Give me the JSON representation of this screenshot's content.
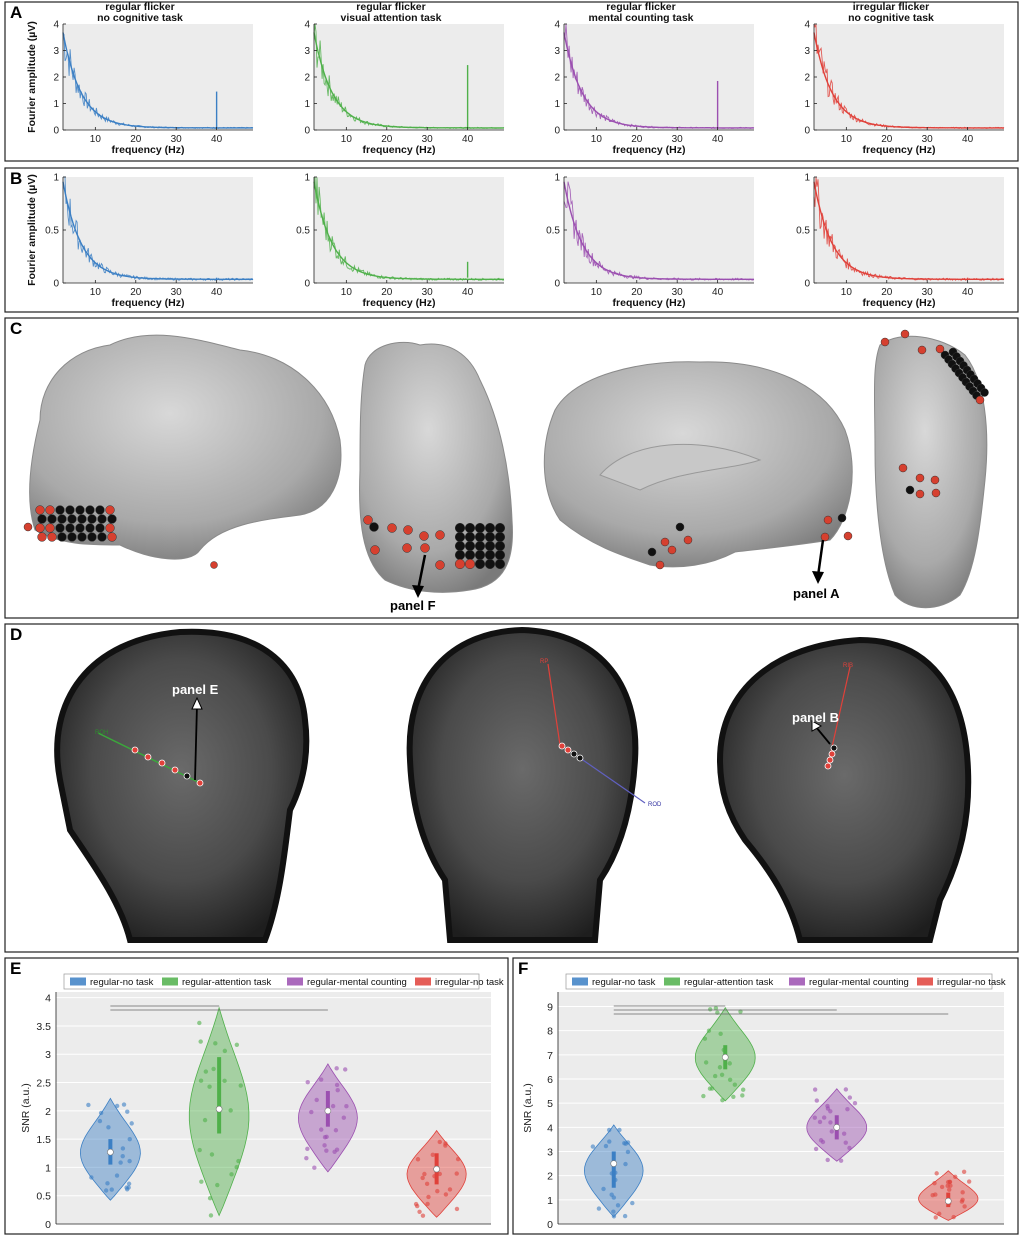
{
  "panel_letters": {
    "A": "A",
    "B": "B",
    "C": "C",
    "D": "D",
    "E": "E",
    "F": "F"
  },
  "conditions": [
    {
      "line1": "regular flicker",
      "line2": "no cognitive task",
      "color": "#3b7fc4"
    },
    {
      "line1": "regular flicker",
      "line2": "visual attention task",
      "color": "#4fb04a"
    },
    {
      "line1": "regular flicker",
      "line2": "mental counting task",
      "color": "#9b4fb0"
    },
    {
      "line1": "irregular flicker",
      "line2": "no cognitive task",
      "color": "#e0413a"
    }
  ],
  "spectra_axes": {
    "xlabel": "frequency (Hz)",
    "ylabel": "Fourier amplitude (µV)",
    "xticks": [
      "10",
      "20",
      "30",
      "40"
    ],
    "A_yticks": [
      "0",
      "1",
      "2",
      "3",
      "4"
    ],
    "B_yticks": [
      "0",
      "0.5",
      "1"
    ]
  },
  "C_annotations": {
    "panel_f": "panel F",
    "panel_a": "panel A"
  },
  "D_annotations": {
    "panel_e": "panel E",
    "panel_b": "panel B",
    "tag_roh": "ROH",
    "tag_rod": "ROD",
    "tag_rib": "RIB",
    "tag_rp": "RP"
  },
  "chart_data": [
    {
      "type": "line",
      "panel": "A",
      "title": "regular flicker / no cognitive task · visual attention task · mental counting task · irregular flicker / no cognitive task",
      "xlabel": "frequency (Hz)",
      "ylabel": "Fourier amplitude (µV)",
      "xlim": [
        2,
        49
      ],
      "ylim": [
        0,
        4
      ],
      "series": [
        {
          "name": "regular flicker no cognitive task",
          "peak_40Hz": 1.45
        },
        {
          "name": "regular flicker visual attention task",
          "peak_40Hz": 2.45
        },
        {
          "name": "regular flicker mental counting task",
          "peak_40Hz": 1.85
        },
        {
          "name": "irregular flicker no cognitive task",
          "peak_40Hz": 0.1
        }
      ]
    },
    {
      "type": "line",
      "panel": "B",
      "xlabel": "frequency (Hz)",
      "ylabel": "Fourier amplitude (µV)",
      "xlim": [
        2,
        49
      ],
      "ylim": [
        0,
        1
      ],
      "series": [
        {
          "name": "regular flicker no cognitive task",
          "peak_40Hz": 0.04
        },
        {
          "name": "regular flicker visual attention task",
          "peak_40Hz": 0.2
        },
        {
          "name": "regular flicker mental counting task",
          "peak_40Hz": 0.05
        },
        {
          "name": "irregular flicker no cognitive task",
          "peak_40Hz": 0.04
        }
      ]
    },
    {
      "type": "violin",
      "panel": "E",
      "ylabel": "SNR (a.u.)",
      "ylim": [
        0,
        4.1
      ],
      "yticks": [
        "0",
        "0.5",
        "1",
        "1.5",
        "2",
        "2.5",
        "3",
        "3.5",
        "4"
      ],
      "legend": [
        "regular-no task",
        "regular-attention task",
        "regular-mental counting",
        "irregular-no task"
      ],
      "series": [
        {
          "name": "regular-no task",
          "min": 0.42,
          "max": 2.22,
          "median": 1.27,
          "q1": 1.05,
          "q3": 1.5
        },
        {
          "name": "regular-attention task",
          "min": 0.15,
          "max": 3.82,
          "median": 2.03,
          "q1": 1.6,
          "q3": 2.95
        },
        {
          "name": "regular-mental counting",
          "min": 0.92,
          "max": 2.83,
          "median": 2.0,
          "q1": 1.72,
          "q3": 2.35
        },
        {
          "name": "irregular-no task",
          "min": 0.12,
          "max": 1.65,
          "median": 0.97,
          "q1": 0.7,
          "q3": 1.25
        }
      ]
    },
    {
      "type": "violin",
      "panel": "F",
      "ylabel": "SNR (a.u.)",
      "ylim": [
        0,
        9.6
      ],
      "yticks": [
        "0",
        "1",
        "2",
        "3",
        "4",
        "5",
        "6",
        "7",
        "8",
        "9"
      ],
      "legend": [
        "regular-no task",
        "regular-attention task",
        "regular-mental counting",
        "irregular-no task"
      ],
      "series": [
        {
          "name": "regular-no task",
          "min": 0.3,
          "max": 4.1,
          "median": 2.5,
          "q1": 1.5,
          "q3": 3.0
        },
        {
          "name": "regular-attention task",
          "min": 5.1,
          "max": 8.95,
          "median": 6.9,
          "q1": 6.4,
          "q3": 7.4
        },
        {
          "name": "regular-mental counting",
          "min": 2.6,
          "max": 5.6,
          "median": 4.0,
          "q1": 3.5,
          "q3": 4.5
        },
        {
          "name": "irregular-no task",
          "min": 0.15,
          "max": 2.2,
          "median": 0.95,
          "q1": 0.7,
          "q3": 1.3
        }
      ]
    }
  ]
}
